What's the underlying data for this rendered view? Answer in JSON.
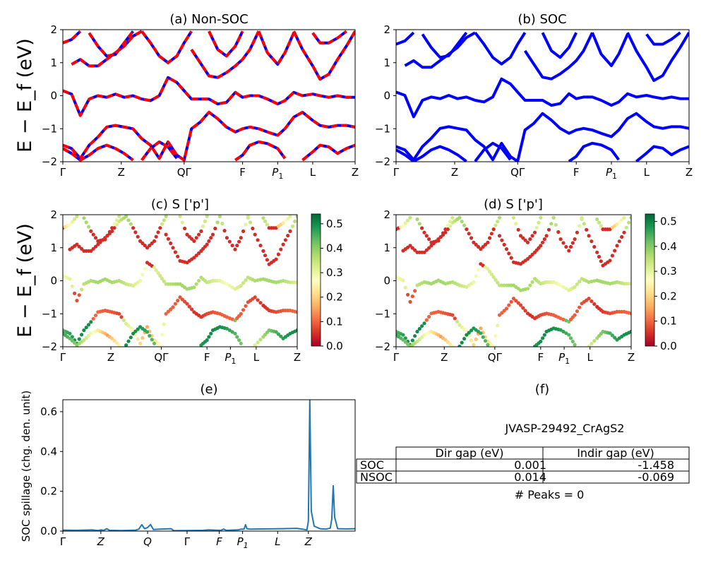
{
  "chart_data": [
    {
      "id": "a",
      "type": "line",
      "title": "(a) Non-SOC",
      "ylabel": "E − E_f (eV)",
      "ylim": [
        -2,
        2
      ],
      "yticks": [
        "2",
        "1",
        "0",
        "−1",
        "−2"
      ],
      "xticks": [
        {
          "label": "Γ",
          "pos": 0.0
        },
        {
          "label": "Z",
          "pos": 0.2
        },
        {
          "label": "QΓ",
          "pos": 0.415
        },
        {
          "label": "F",
          "pos": 0.615
        },
        {
          "label": "P",
          "sub": "1",
          "pos": 0.735
        },
        {
          "label": "L",
          "pos": 0.855
        },
        {
          "label": "Z",
          "pos": 1.0
        }
      ],
      "series": [
        {
          "role": "spin-up",
          "color": "#0000ff",
          "style": "solid"
        },
        {
          "role": "spin-down",
          "color": "#ff0000",
          "style": "dashed"
        }
      ],
      "bands": [
        [
          [
            0,
            0.15
          ],
          [
            0.03,
            0.05
          ],
          [
            0.06,
            -0.6
          ],
          [
            0.09,
            -0.1
          ],
          [
            0.12,
            0.0
          ],
          [
            0.15,
            -0.05
          ],
          [
            0.18,
            0.05
          ],
          [
            0.21,
            -0.05
          ],
          [
            0.24,
            0.0
          ],
          [
            0.27,
            -0.1
          ],
          [
            0.3,
            -0.15
          ],
          [
            0.33,
            0.0
          ],
          [
            0.36,
            0.55
          ],
          [
            0.39,
            0.4
          ],
          [
            0.415,
            0.15
          ],
          [
            0.44,
            -0.1
          ],
          [
            0.47,
            -0.1
          ],
          [
            0.5,
            -0.1
          ],
          [
            0.53,
            -0.25
          ],
          [
            0.56,
            -0.2
          ],
          [
            0.59,
            0.1
          ],
          [
            0.615,
            -0.05
          ],
          [
            0.64,
            0.0
          ],
          [
            0.67,
            0.0
          ],
          [
            0.7,
            -0.1
          ],
          [
            0.735,
            -0.25
          ],
          [
            0.76,
            -0.15
          ],
          [
            0.79,
            0.1
          ],
          [
            0.82,
            0.0
          ],
          [
            0.855,
            0.05
          ],
          [
            0.88,
            0.0
          ],
          [
            0.91,
            -0.05
          ],
          [
            0.94,
            0.0
          ],
          [
            0.97,
            -0.05
          ],
          [
            1.0,
            -0.05
          ]
        ],
        [
          [
            0,
            -1.5
          ],
          [
            0.03,
            -1.6
          ],
          [
            0.06,
            -1.9
          ],
          [
            0.09,
            -1.5
          ],
          [
            0.12,
            -1.25
          ],
          [
            0.15,
            -0.95
          ],
          [
            0.18,
            -0.9
          ],
          [
            0.21,
            -0.95
          ],
          [
            0.24,
            -1.0
          ],
          [
            0.27,
            -1.3
          ],
          [
            0.3,
            -1.5
          ],
          [
            0.33,
            -1.9
          ],
          [
            0.36,
            -1.4
          ],
          [
            0.39,
            -1.8
          ],
          [
            0.415,
            -1.95
          ],
          [
            0.44,
            -1.0
          ],
          [
            0.47,
            -0.8
          ],
          [
            0.5,
            -0.5
          ],
          [
            0.53,
            -0.7
          ],
          [
            0.56,
            -0.95
          ],
          [
            0.59,
            -1.1
          ],
          [
            0.615,
            -1.0
          ],
          [
            0.64,
            -0.95
          ],
          [
            0.67,
            -1.0
          ],
          [
            0.7,
            -1.1
          ],
          [
            0.735,
            -1.2
          ],
          [
            0.76,
            -1.0
          ],
          [
            0.79,
            -0.65
          ],
          [
            0.82,
            -0.5
          ],
          [
            0.855,
            -0.75
          ],
          [
            0.88,
            -0.9
          ],
          [
            0.91,
            -0.95
          ],
          [
            0.94,
            -0.9
          ],
          [
            0.97,
            -0.9
          ],
          [
            1.0,
            -0.95
          ]
        ],
        [
          [
            0,
            -1.6
          ],
          [
            0.03,
            -1.75
          ],
          [
            0.06,
            -1.95
          ],
          [
            0.09,
            -1.8
          ],
          [
            0.12,
            -1.6
          ],
          [
            0.15,
            -1.5
          ],
          [
            0.18,
            -1.6
          ],
          [
            0.21,
            -1.75
          ],
          [
            0.24,
            -1.95
          ]
        ],
        [
          [
            0.27,
            -1.95
          ],
          [
            0.3,
            -1.6
          ],
          [
            0.33,
            -1.4
          ],
          [
            0.36,
            -1.55
          ],
          [
            0.39,
            -1.9
          ]
        ],
        [
          [
            0.59,
            -1.95
          ],
          [
            0.615,
            -1.8
          ],
          [
            0.64,
            -1.5
          ],
          [
            0.67,
            -1.4
          ],
          [
            0.7,
            -1.45
          ],
          [
            0.735,
            -1.6
          ],
          [
            0.76,
            -1.9
          ]
        ],
        [
          [
            0.82,
            -1.95
          ],
          [
            0.855,
            -1.7
          ],
          [
            0.88,
            -1.5
          ],
          [
            0.91,
            -1.55
          ],
          [
            0.94,
            -1.75
          ],
          [
            0.97,
            -1.6
          ],
          [
            1.0,
            -1.5
          ]
        ],
        [
          [
            0,
            1.6
          ],
          [
            0.03,
            1.7
          ],
          [
            0.06,
            1.95
          ]
        ],
        [
          [
            0.03,
            0.95
          ],
          [
            0.06,
            1.1
          ],
          [
            0.09,
            0.9
          ],
          [
            0.12,
            0.9
          ],
          [
            0.15,
            1.1
          ],
          [
            0.18,
            1.3
          ],
          [
            0.21,
            1.5
          ],
          [
            0.24,
            1.8
          ],
          [
            0.27,
            1.95
          ]
        ],
        [
          [
            0.09,
            1.9
          ],
          [
            0.12,
            1.5
          ],
          [
            0.15,
            1.2
          ],
          [
            0.18,
            1.25
          ],
          [
            0.21,
            1.6
          ],
          [
            0.24,
            1.95
          ]
        ],
        [
          [
            0.27,
            1.95
          ],
          [
            0.3,
            1.6
          ],
          [
            0.33,
            1.2
          ],
          [
            0.36,
            1.0
          ],
          [
            0.39,
            1.2
          ],
          [
            0.415,
            1.6
          ],
          [
            0.44,
            1.95
          ]
        ],
        [
          [
            0.44,
            1.4
          ],
          [
            0.47,
            1.0
          ],
          [
            0.5,
            0.6
          ],
          [
            0.53,
            0.55
          ],
          [
            0.56,
            0.7
          ],
          [
            0.59,
            0.9
          ],
          [
            0.615,
            1.1
          ],
          [
            0.64,
            1.4
          ],
          [
            0.67,
            1.95
          ]
        ],
        [
          [
            0.5,
            1.95
          ],
          [
            0.53,
            1.4
          ],
          [
            0.56,
            1.2
          ],
          [
            0.59,
            1.5
          ],
          [
            0.615,
            1.95
          ]
        ],
        [
          [
            0.67,
            1.95
          ],
          [
            0.7,
            1.3
          ],
          [
            0.735,
            0.95
          ],
          [
            0.76,
            1.3
          ],
          [
            0.79,
            1.9
          ]
        ],
        [
          [
            0.79,
            1.95
          ],
          [
            0.82,
            1.4
          ],
          [
            0.855,
            0.9
          ],
          [
            0.88,
            0.5
          ],
          [
            0.91,
            0.65
          ],
          [
            0.94,
            1.1
          ],
          [
            0.97,
            1.5
          ],
          [
            1.0,
            1.95
          ]
        ],
        [
          [
            0.855,
            1.9
          ],
          [
            0.88,
            1.6
          ],
          [
            0.91,
            1.6
          ],
          [
            0.94,
            1.75
          ],
          [
            0.97,
            1.95
          ]
        ]
      ]
    },
    {
      "id": "b",
      "type": "line",
      "title": "(b) SOC",
      "ylim": [
        -2,
        2
      ],
      "yticks": [
        "2",
        "1",
        "0",
        "−1",
        "−2"
      ],
      "xticks_same_as": "a",
      "series": [
        {
          "role": "soc",
          "color": "#0000ff",
          "style": "solid"
        }
      ]
    },
    {
      "id": "c",
      "type": "scatter",
      "title": "(c)  S ['p']",
      "ylabel": "E − E_f (eV)",
      "ylim": [
        -2,
        2
      ],
      "colorbar": {
        "min": 0.0,
        "max": 0.54,
        "ticks": [
          "0.0",
          "0.1",
          "0.2",
          "0.3",
          "0.4",
          "0.5"
        ],
        "colormap": "RdYlGn"
      }
    },
    {
      "id": "d",
      "type": "scatter",
      "title": "(d) S ['p']",
      "ylim": [
        -2,
        2
      ],
      "colorbar": {
        "min": 0.0,
        "max": 0.53,
        "ticks": [
          "0.0",
          "0.1",
          "0.2",
          "0.3",
          "0.4",
          "0.5"
        ],
        "colormap": "RdYlGn"
      }
    },
    {
      "id": "e",
      "type": "line",
      "title": "(e)",
      "ylabel": "SOC spillage (chg. den. unit)",
      "ylim": [
        0,
        0.66
      ],
      "yticks": [
        "0.0",
        "0.2",
        "0.4",
        "0.6"
      ],
      "color": "#1f77b4",
      "xticks": [
        {
          "label": "Γ",
          "pos": 0.0,
          "italic": false
        },
        {
          "label": "Z",
          "pos": 0.13,
          "italic": true
        },
        {
          "label": "Q",
          "pos": 0.29,
          "italic": true
        },
        {
          "label": "Γ",
          "pos": 0.425,
          "italic": false
        },
        {
          "label": "F",
          "pos": 0.535,
          "italic": true
        },
        {
          "label": "P",
          "sub": "1",
          "pos": 0.615,
          "italic": true
        },
        {
          "label": "L",
          "pos": 0.735,
          "italic": true
        },
        {
          "label": "Z",
          "pos": 0.84,
          "italic": true
        }
      ],
      "points": [
        [
          0,
          0.005
        ],
        [
          0.05,
          0.004
        ],
        [
          0.1,
          0.006
        ],
        [
          0.12,
          0.003
        ],
        [
          0.13,
          0.006
        ],
        [
          0.14,
          0.004
        ],
        [
          0.15,
          0.012
        ],
        [
          0.16,
          0.004
        ],
        [
          0.2,
          0.003
        ],
        [
          0.25,
          0.005
        ],
        [
          0.26,
          0.01
        ],
        [
          0.27,
          0.032
        ],
        [
          0.28,
          0.012
        ],
        [
          0.29,
          0.018
        ],
        [
          0.3,
          0.033
        ],
        [
          0.31,
          0.008
        ],
        [
          0.33,
          0.01
        ],
        [
          0.37,
          0.012
        ],
        [
          0.38,
          0.002
        ],
        [
          0.42,
          0.003
        ],
        [
          0.48,
          0.004
        ],
        [
          0.5,
          0.006
        ],
        [
          0.52,
          0.005
        ],
        [
          0.54,
          0.004
        ],
        [
          0.55,
          0.01
        ],
        [
          0.56,
          0.004
        ],
        [
          0.6,
          0.006
        ],
        [
          0.61,
          0.01
        ],
        [
          0.62,
          0.01
        ],
        [
          0.625,
          0.032
        ],
        [
          0.63,
          0.012
        ],
        [
          0.64,
          0.01
        ],
        [
          0.7,
          0.011
        ],
        [
          0.75,
          0.012
        ],
        [
          0.8,
          0.014
        ],
        [
          0.82,
          0.01
        ],
        [
          0.835,
          0.006
        ],
        [
          0.84,
          0.05
        ],
        [
          0.845,
          0.66
        ],
        [
          0.85,
          0.1
        ],
        [
          0.86,
          0.025
        ],
        [
          0.88,
          0.012
        ],
        [
          0.9,
          0.01
        ],
        [
          0.915,
          0.015
        ],
        [
          0.92,
          0.06
        ],
        [
          0.925,
          0.228
        ],
        [
          0.93,
          0.07
        ],
        [
          0.94,
          0.012
        ],
        [
          0.97,
          0.011
        ],
        [
          1.0,
          0.012
        ]
      ]
    }
  ],
  "panel_f": {
    "title": "(f)",
    "material": "JVASP-29492_CrAgS2",
    "table": {
      "headers": [
        "Dir gap (eV)",
        "Indir gap (eV)"
      ],
      "rows": [
        {
          "label": "SOC",
          "dir": "0.001",
          "indir": "-1.458"
        },
        {
          "label": "NSOC",
          "dir": "0.014",
          "indir": "-0.069"
        }
      ]
    },
    "peaks_text": "# Peaks = 0"
  }
}
